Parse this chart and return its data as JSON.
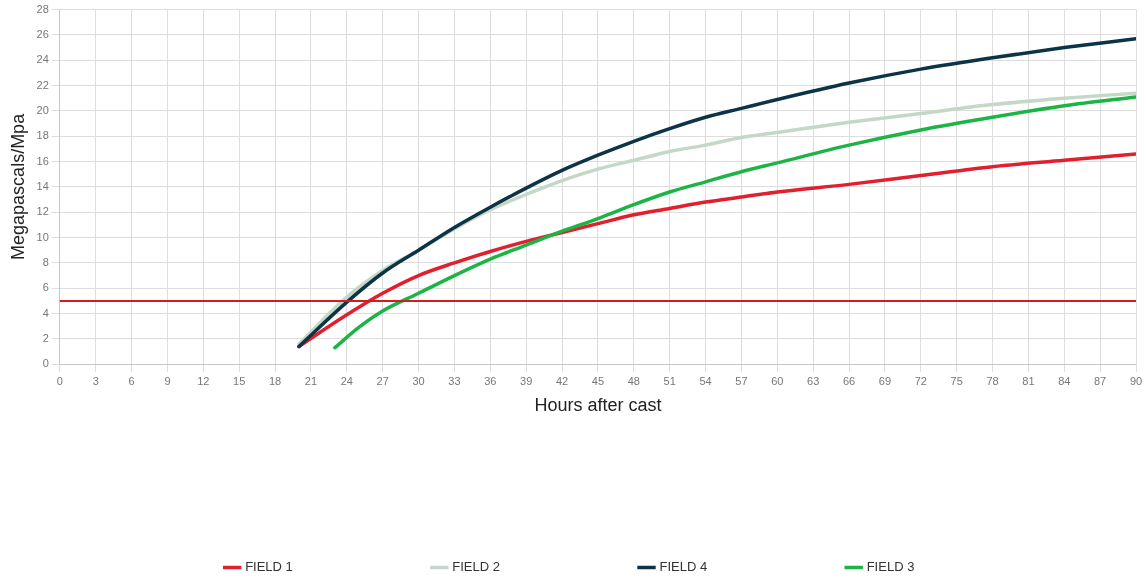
{
  "chart_data": {
    "type": "line",
    "xlabel": "Hours after cast",
    "ylabel": "Megapascals/Mpa",
    "xlim": [
      0,
      90
    ],
    "xticks": [
      0,
      3,
      6,
      9,
      12,
      15,
      18,
      21,
      24,
      27,
      30,
      33,
      36,
      39,
      42,
      45,
      48,
      51,
      54,
      57,
      60,
      63,
      66,
      69,
      72,
      75,
      78,
      81,
      84,
      87,
      90
    ],
    "ylim": [
      0,
      28
    ],
    "yticks": [
      0,
      2,
      4,
      6,
      8,
      10,
      12,
      14,
      16,
      18,
      20,
      22,
      24,
      26,
      28
    ],
    "grid": true,
    "legend": "bottom",
    "marker": "none",
    "line_style": "solid",
    "series": [
      {
        "name": "FIELD 1",
        "color": "#e0202e",
        "x": [
          20,
          24,
          27,
          30,
          33,
          36,
          39,
          42,
          45,
          48,
          51,
          54,
          57,
          60,
          66,
          72,
          78,
          84,
          90
        ],
        "values": [
          1.4,
          3.9,
          5.6,
          7.0,
          8.0,
          8.9,
          9.7,
          10.4,
          11.1,
          11.8,
          12.3,
          12.8,
          13.2,
          13.6,
          14.2,
          14.9,
          15.6,
          16.1,
          16.6
        ]
      },
      {
        "name": "FIELD 2",
        "color": "#c3d8c6",
        "x": [
          20,
          24,
          27,
          30,
          33,
          36,
          39,
          42,
          45,
          48,
          51,
          54,
          57,
          60,
          66,
          72,
          78,
          84,
          90
        ],
        "values": [
          1.6,
          5.3,
          7.4,
          9.0,
          10.7,
          12.2,
          13.4,
          14.5,
          15.4,
          16.1,
          16.8,
          17.3,
          17.9,
          18.3,
          19.1,
          19.8,
          20.5,
          21.0,
          21.4
        ]
      },
      {
        "name": "FIELD 4",
        "color": "#0d3446",
        "x": [
          20,
          24,
          27,
          30,
          33,
          36,
          39,
          42,
          45,
          48,
          51,
          54,
          57,
          60,
          66,
          72,
          78,
          84,
          90
        ],
        "values": [
          1.4,
          4.9,
          7.2,
          9.0,
          10.8,
          12.4,
          13.9,
          15.3,
          16.5,
          17.6,
          18.6,
          19.5,
          20.2,
          20.9,
          22.2,
          23.3,
          24.2,
          25.0,
          25.7
        ]
      },
      {
        "name": "FIELD 3",
        "color": "#1db446",
        "x": [
          23,
          25,
          27,
          30,
          33,
          36,
          39,
          42,
          45,
          48,
          51,
          54,
          57,
          60,
          66,
          72,
          78,
          84,
          90
        ],
        "values": [
          1.3,
          2.9,
          4.2,
          5.6,
          7.0,
          8.3,
          9.4,
          10.5,
          11.5,
          12.6,
          13.6,
          14.4,
          15.2,
          15.9,
          17.3,
          18.5,
          19.5,
          20.4,
          21.1
        ]
      }
    ],
    "ref_lines": [
      {
        "axis": "y",
        "value": 5,
        "color": "#d01c24",
        "line_style": "solid"
      }
    ]
  }
}
